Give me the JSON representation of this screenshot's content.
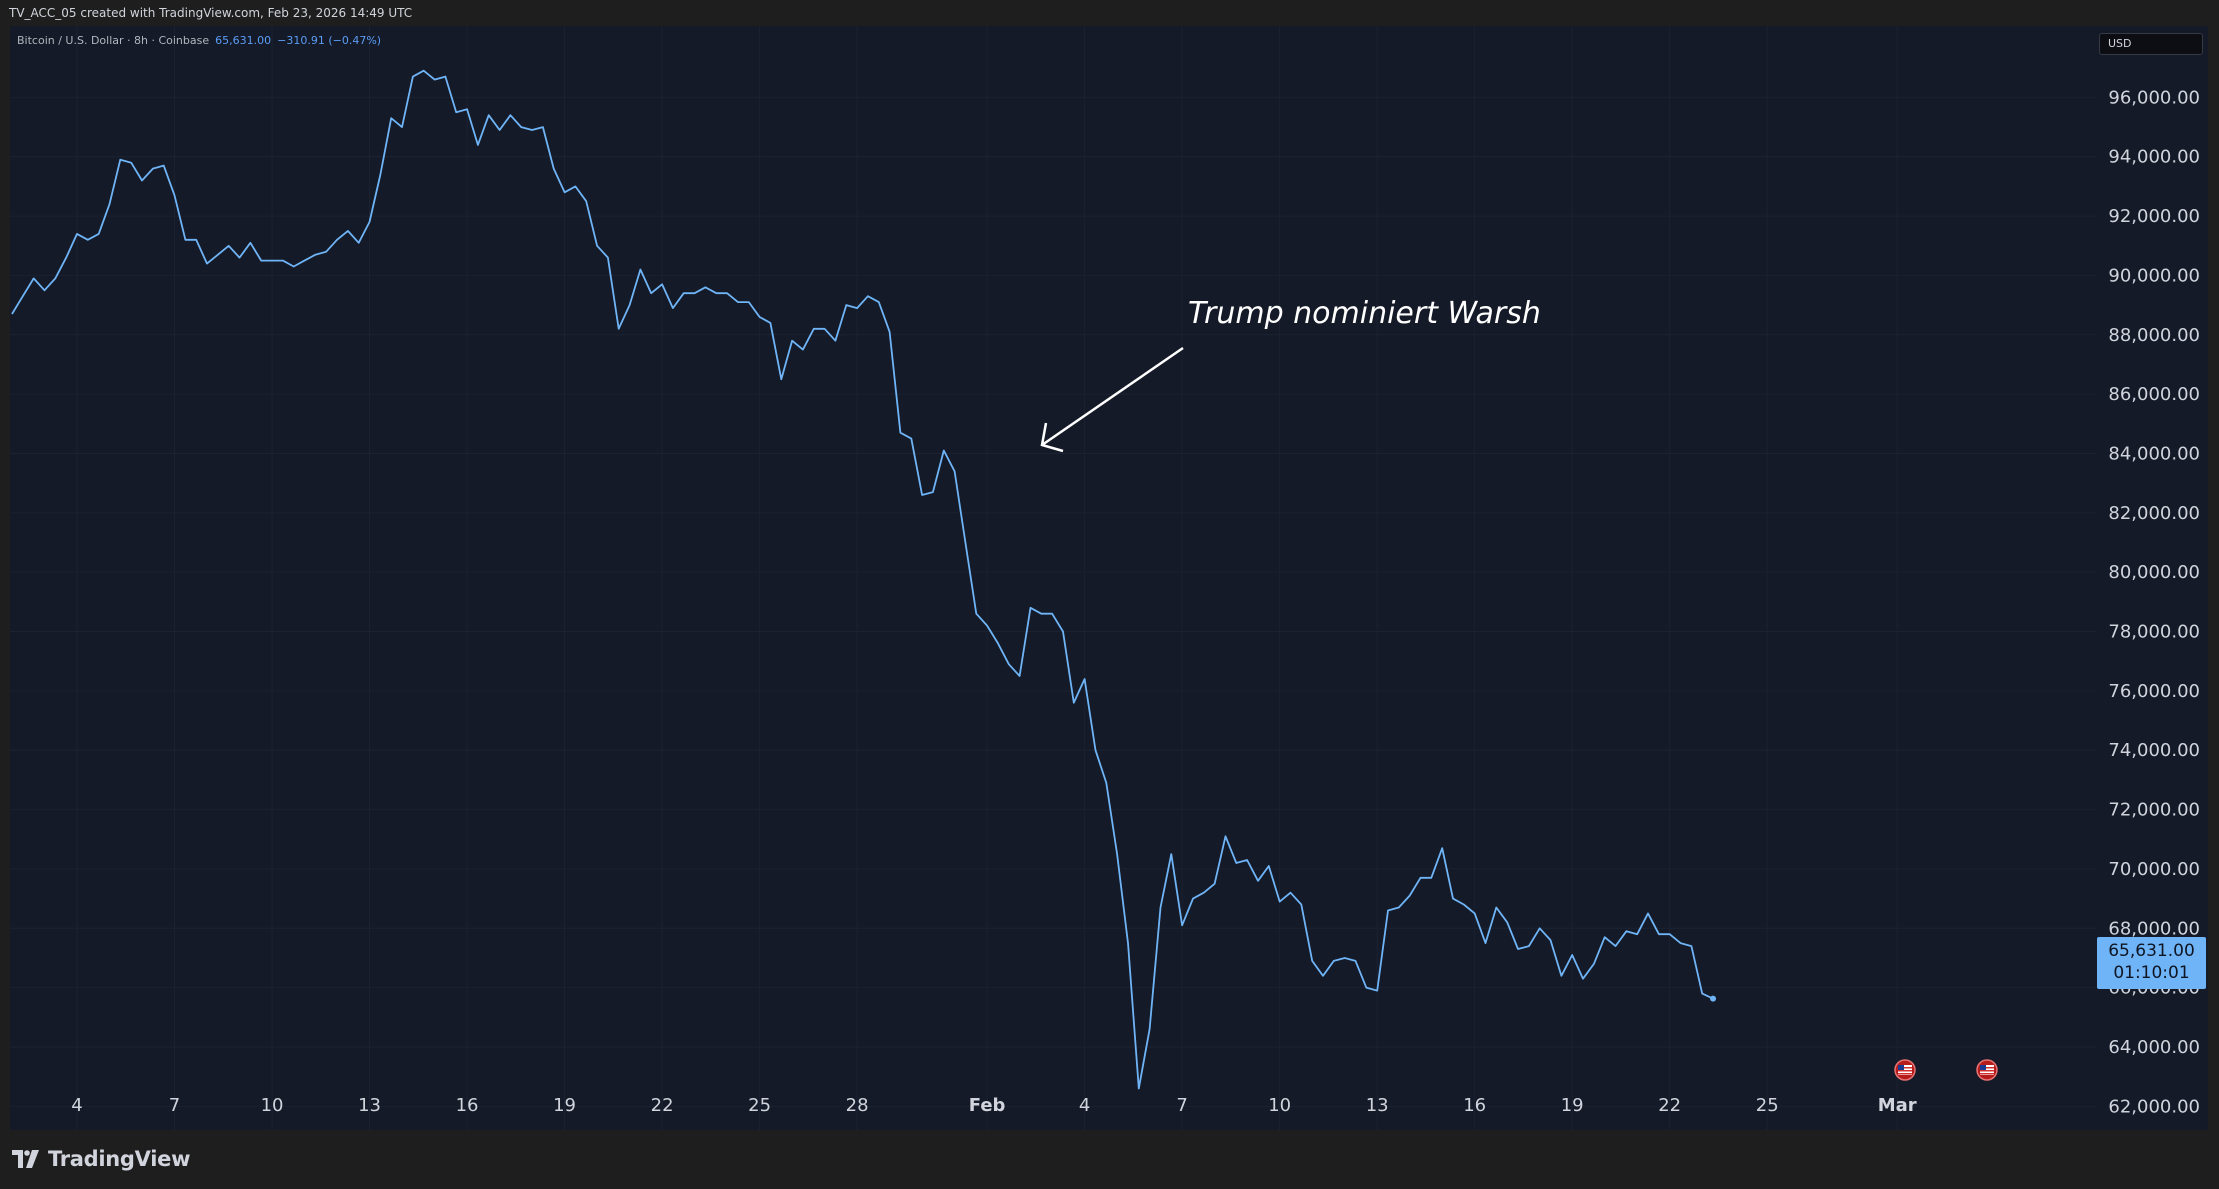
{
  "header": {
    "caption": "TV_ACC_05 created with TradingView.com, Feb 23, 2026 14:49 UTC"
  },
  "legend": {
    "symbol": "Bitcoin / U.S. Dollar · 8h · Coinbase",
    "price": "65,631.00",
    "change": "−310.91 (−0.47%)"
  },
  "currency": {
    "selected": "USD"
  },
  "price_badge": {
    "price": "65,631.00",
    "countdown": "01:10:01"
  },
  "annotation": {
    "text": "Trump nominiert Warsh"
  },
  "footer": {
    "brand": "TradingView"
  },
  "colors": {
    "line": "#6fb4f7",
    "background": "#141a27",
    "axis_text": "#d1d4dc",
    "badge": "#6fb4f7"
  },
  "icons": {
    "event_markers": [
      "us-flag-icon",
      "us-flag-icon"
    ],
    "logo": "tradingview-logo-icon"
  },
  "chart_data": {
    "type": "line",
    "ylim": [
      61000,
      97900
    ],
    "y_ticks": [
      62000,
      64000,
      66000,
      68000,
      70000,
      72000,
      74000,
      76000,
      78000,
      80000,
      82000,
      84000,
      86000,
      88000,
      90000,
      92000,
      94000,
      96000
    ],
    "y_tick_labels": [
      "62,000.00",
      "64,000.00",
      "66,000.00",
      "68,000.00",
      "70,000.00",
      "72,000.00",
      "74,000.00",
      "76,000.00",
      "78,000.00",
      "80,000.00",
      "82,000.00",
      "84,000.00",
      "86,000.00",
      "88,000.00",
      "90,000.00",
      "92,000.00",
      "94,000.00",
      "96,000.00"
    ],
    "x_tick_labels": [
      "4",
      "7",
      "10",
      "13",
      "16",
      "19",
      "22",
      "25",
      "28",
      "Feb",
      "4",
      "7",
      "10",
      "13",
      "16",
      "19",
      "22",
      "25",
      "Mar"
    ],
    "x_tick_dates": [
      "2026-01-04",
      "2026-01-07",
      "2026-01-10",
      "2026-01-13",
      "2026-01-16",
      "2026-01-19",
      "2026-01-22",
      "2026-01-25",
      "2026-01-28",
      "2026-02-01",
      "2026-02-04",
      "2026-02-07",
      "2026-02-10",
      "2026-02-13",
      "2026-02-16",
      "2026-02-19",
      "2026-02-22",
      "2026-02-25",
      "2026-03-01"
    ],
    "x_range": [
      "2026-01-02 00:00",
      "2026-03-06 12:00"
    ],
    "series": [
      {
        "x": [
          "2026-01-02 00:00",
          "2026-01-02 08:00",
          "2026-01-02 16:00",
          "2026-01-03 00:00",
          "2026-01-03 08:00",
          "2026-01-03 16:00",
          "2026-01-04 00:00",
          "2026-01-04 08:00",
          "2026-01-04 16:00",
          "2026-01-05 00:00",
          "2026-01-05 08:00",
          "2026-01-05 16:00",
          "2026-01-06 00:00",
          "2026-01-06 08:00",
          "2026-01-06 16:00",
          "2026-01-07 00:00",
          "2026-01-07 08:00",
          "2026-01-07 16:00",
          "2026-01-08 00:00",
          "2026-01-08 08:00",
          "2026-01-08 16:00",
          "2026-01-09 00:00",
          "2026-01-09 08:00",
          "2026-01-09 16:00",
          "2026-01-10 00:00",
          "2026-01-10 08:00",
          "2026-01-10 16:00",
          "2026-01-11 00:00",
          "2026-01-11 08:00",
          "2026-01-11 16:00",
          "2026-01-12 00:00",
          "2026-01-12 08:00",
          "2026-01-12 16:00",
          "2026-01-13 00:00",
          "2026-01-13 08:00",
          "2026-01-13 16:00",
          "2026-01-14 00:00",
          "2026-01-14 08:00",
          "2026-01-14 16:00",
          "2026-01-15 00:00",
          "2026-01-15 08:00",
          "2026-01-15 16:00",
          "2026-01-16 00:00",
          "2026-01-16 08:00",
          "2026-01-16 16:00",
          "2026-01-17 00:00",
          "2026-01-17 08:00",
          "2026-01-17 16:00",
          "2026-01-18 00:00",
          "2026-01-18 08:00",
          "2026-01-18 16:00",
          "2026-01-19 00:00",
          "2026-01-19 08:00",
          "2026-01-19 16:00",
          "2026-01-20 00:00",
          "2026-01-20 08:00",
          "2026-01-20 16:00",
          "2026-01-21 00:00",
          "2026-01-21 08:00",
          "2026-01-21 16:00",
          "2026-01-22 00:00",
          "2026-01-22 08:00",
          "2026-01-22 16:00",
          "2026-01-23 00:00",
          "2026-01-23 08:00",
          "2026-01-23 16:00",
          "2026-01-24 00:00",
          "2026-01-24 08:00",
          "2026-01-24 16:00",
          "2026-01-25 00:00",
          "2026-01-25 08:00",
          "2026-01-25 16:00",
          "2026-01-26 00:00",
          "2026-01-26 08:00",
          "2026-01-26 16:00",
          "2026-01-27 00:00",
          "2026-01-27 08:00",
          "2026-01-27 16:00",
          "2026-01-28 00:00",
          "2026-01-28 08:00",
          "2026-01-28 16:00",
          "2026-01-29 00:00",
          "2026-01-29 08:00",
          "2026-01-29 16:00",
          "2026-01-30 00:00",
          "2026-01-30 08:00",
          "2026-01-30 16:00",
          "2026-01-31 00:00",
          "2026-01-31 08:00",
          "2026-01-31 16:00",
          "2026-02-01 00:00",
          "2026-02-01 08:00",
          "2026-02-01 16:00",
          "2026-02-02 00:00",
          "2026-02-02 08:00",
          "2026-02-02 16:00",
          "2026-02-03 00:00",
          "2026-02-03 08:00",
          "2026-02-03 16:00",
          "2026-02-04 00:00",
          "2026-02-04 08:00",
          "2026-02-04 16:00",
          "2026-02-05 00:00",
          "2026-02-05 08:00",
          "2026-02-05 16:00",
          "2026-02-06 00:00",
          "2026-02-06 08:00",
          "2026-02-06 16:00",
          "2026-02-07 00:00",
          "2026-02-07 08:00",
          "2026-02-07 16:00",
          "2026-02-08 00:00",
          "2026-02-08 08:00",
          "2026-02-08 16:00",
          "2026-02-09 00:00",
          "2026-02-09 08:00",
          "2026-02-09 16:00",
          "2026-02-10 00:00",
          "2026-02-10 08:00",
          "2026-02-10 16:00",
          "2026-02-11 00:00",
          "2026-02-11 08:00",
          "2026-02-11 16:00",
          "2026-02-12 00:00",
          "2026-02-12 08:00",
          "2026-02-12 16:00",
          "2026-02-13 00:00",
          "2026-02-13 08:00",
          "2026-02-13 16:00",
          "2026-02-14 00:00",
          "2026-02-14 08:00",
          "2026-02-14 16:00",
          "2026-02-15 00:00",
          "2026-02-15 08:00",
          "2026-02-15 16:00",
          "2026-02-16 00:00",
          "2026-02-16 08:00",
          "2026-02-16 16:00",
          "2026-02-17 00:00",
          "2026-02-17 08:00",
          "2026-02-17 16:00",
          "2026-02-18 00:00",
          "2026-02-18 08:00",
          "2026-02-18 16:00",
          "2026-02-19 00:00",
          "2026-02-19 08:00",
          "2026-02-19 16:00",
          "2026-02-20 00:00",
          "2026-02-20 08:00",
          "2026-02-20 16:00",
          "2026-02-21 00:00",
          "2026-02-21 08:00",
          "2026-02-21 16:00",
          "2026-02-22 00:00",
          "2026-02-22 08:00",
          "2026-02-22 16:00",
          "2026-02-23 00:00",
          "2026-02-23 08:00"
        ],
        "values": [
          88700,
          89300,
          89900,
          89500,
          89900,
          90600,
          91400,
          91200,
          91400,
          92400,
          93900,
          93800,
          93200,
          93600,
          93700,
          92700,
          91200,
          91200,
          90400,
          90700,
          91000,
          90600,
          91100,
          90500,
          90500,
          90500,
          90300,
          90500,
          90700,
          90800,
          91200,
          91500,
          91100,
          91800,
          93400,
          95300,
          95000,
          96700,
          96900,
          96600,
          96700,
          95500,
          95600,
          94400,
          95400,
          94900,
          95400,
          95000,
          94900,
          95000,
          93600,
          92800,
          93000,
          92500,
          91000,
          90600,
          88200,
          89000,
          90200,
          89400,
          89700,
          88900,
          89400,
          89400,
          89600,
          89400,
          89400,
          89100,
          89100,
          88600,
          88400,
          86500,
          87800,
          87500,
          88200,
          88200,
          87800,
          89000,
          88900,
          89300,
          89100,
          88100,
          84700,
          84500,
          82600,
          82700,
          84100,
          83400,
          81000,
          78600,
          78200,
          77600,
          76900,
          76500,
          78800,
          78600,
          78600,
          78000,
          75600,
          76400,
          74000,
          72900,
          70500,
          67500,
          62600,
          64600,
          68700,
          70500,
          68100,
          69000,
          69200,
          69500,
          71100,
          70200,
          70300,
          69600,
          70100,
          68900,
          69200,
          68800,
          66900,
          66400,
          66900,
          67000,
          66900,
          66000,
          65900,
          68600,
          68700,
          69100,
          69700,
          69700,
          70700,
          69000,
          68800,
          68500,
          67500,
          68700,
          68200,
          67300,
          67400,
          68000,
          67600,
          66400,
          67100,
          66300,
          66800,
          67700,
          67400,
          67900,
          67800,
          68500,
          67800,
          67800,
          67500,
          67400,
          65800,
          65631
        ]
      }
    ]
  }
}
